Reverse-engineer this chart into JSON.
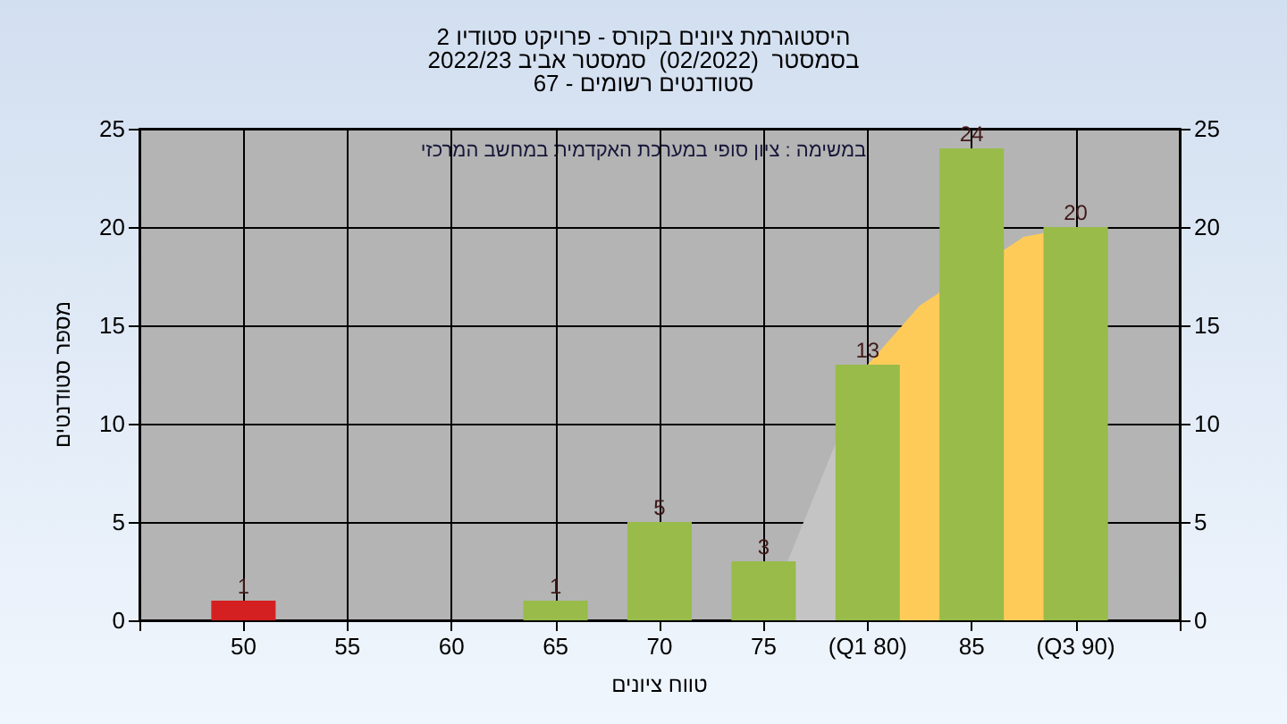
{
  "chart_data": {
    "type": "bar",
    "title": "היסטוגרמת ציונים בקורס - פרויקט סטודיו 2",
    "subtitle": "בסמסטר  (02/2022)  סמסטר אביב 2022/23\nסטודנטים רשומים - 67",
    "xlabel": "טווח ציונים",
    "ylabel": "מספר סטודנטים",
    "annotations": [
      "במשימה : ציון סופי במערכת האקדמית במחשב המרכזי"
    ],
    "x": [
      50,
      55,
      60,
      65,
      70,
      75,
      80,
      85,
      90
    ],
    "series": [
      {
        "values": [
          1,
          0,
          0,
          1,
          5,
          3,
          13,
          24,
          20
        ],
        "colors": [
          "#d42020",
          "#98bb4a",
          "#98bb4a",
          "#98bb4a",
          "#98bb4a",
          "#98bb4a",
          "#98bb4a",
          "#98bb4a",
          "#98bb4a"
        ],
        "value_labels": [
          "1",
          null,
          null,
          "1",
          "5",
          "3",
          "13",
          "24",
          "20"
        ]
      },
      {
        "type": "area",
        "x": [
          75,
          80
        ],
        "values": [
          0,
          13
        ],
        "color": "#c4c4c4"
      },
      {
        "type": "area",
        "x": [
          80,
          82.5,
          87.5,
          90
        ],
        "values": [
          13,
          16,
          19.5,
          20
        ],
        "color": "#fecb59"
      }
    ],
    "xlim": [
      45,
      95
    ],
    "xticks": [
      {
        "value": 45,
        "label": null
      },
      50,
      55,
      60,
      65,
      70,
      75,
      {
        "value": 80,
        "label": "(Q1 80)"
      },
      85,
      {
        "value": 90,
        "label": "(Q3 90)"
      },
      {
        "value": 95,
        "label": null
      }
    ],
    "ylim": [
      0,
      25
    ],
    "yticks": [
      0,
      5,
      10,
      15,
      20,
      25
    ],
    "y2lim": [
      0,
      25
    ],
    "y2ticks": [
      0,
      5,
      10,
      15,
      20,
      25
    ],
    "grid": true
  }
}
